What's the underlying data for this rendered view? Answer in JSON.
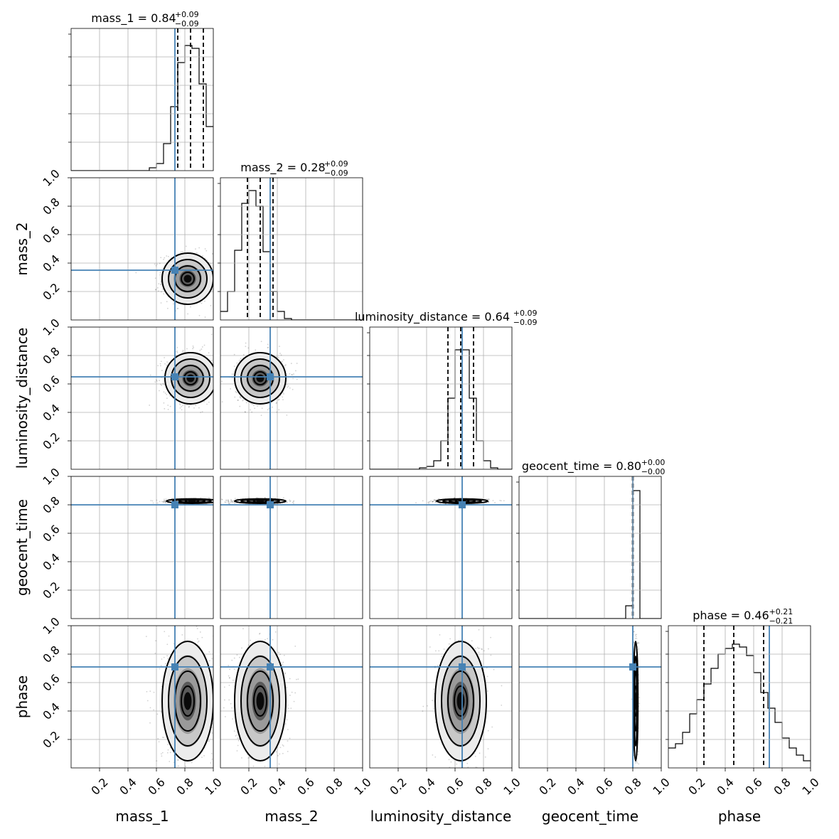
{
  "chart_data": {
    "type": "corner",
    "parameters": [
      "mass_1",
      "mass_2",
      "luminosity_distance",
      "geocent_time",
      "phase"
    ],
    "truths": {
      "mass_1": 0.73,
      "mass_2": 0.35,
      "luminosity_distance": 0.65,
      "geocent_time": 0.8,
      "phase": 0.71
    },
    "truth_color": "#4682b4",
    "summary": [
      {
        "param": "mass_1",
        "label": "mass_1 = 0.84",
        "median": 0.84,
        "plus": "+0.09",
        "minus": "−0.09",
        "q16": 0.75,
        "q84": 0.93
      },
      {
        "param": "mass_2",
        "label": "mass_2 = 0.28",
        "median": 0.28,
        "plus": "+0.09",
        "minus": "−0.09",
        "q16": 0.19,
        "q84": 0.37
      },
      {
        "param": "luminosity_distance",
        "label": "luminosity_distance = 0.64",
        "median": 0.64,
        "plus": "+0.09",
        "minus": "−0.09",
        "q16": 0.55,
        "q84": 0.73
      },
      {
        "param": "geocent_time",
        "label": "geocent_time = 0.80",
        "median": 0.8,
        "plus": "+0.00",
        "minus": "−0.00",
        "q16": 0.798,
        "q84": 0.802
      },
      {
        "param": "phase",
        "label": "phase = 0.46",
        "median": 0.46,
        "plus": "+0.21",
        "minus": "−0.21",
        "q16": 0.25,
        "q84": 0.67
      }
    ],
    "histograms": [
      {
        "param": "mass_1",
        "bin_edges": [
          0.0,
          0.05,
          0.1,
          0.15,
          0.2,
          0.25,
          0.3,
          0.35,
          0.4,
          0.45,
          0.5,
          0.55,
          0.6,
          0.65,
          0.7,
          0.75,
          0.8,
          0.85,
          0.9,
          0.95,
          1.0
        ],
        "counts": [
          0,
          0,
          0,
          0,
          0,
          0,
          0,
          0,
          0,
          0,
          0,
          0.02,
          0.05,
          0.19,
          0.45,
          0.76,
          0.88,
          0.86,
          0.61,
          0.31
        ]
      },
      {
        "param": "mass_2",
        "bin_edges": [
          0.0,
          0.05,
          0.1,
          0.15,
          0.2,
          0.25,
          0.3,
          0.35,
          0.4,
          0.45,
          0.5,
          0.55,
          0.6,
          0.65,
          0.7,
          0.75,
          0.8,
          0.85,
          0.9,
          0.95,
          1.0
        ],
        "counts": [
          0.06,
          0.2,
          0.49,
          0.82,
          0.91,
          0.8,
          0.48,
          0.2,
          0.06,
          0.01,
          0,
          0,
          0,
          0,
          0,
          0,
          0,
          0,
          0,
          0
        ]
      },
      {
        "param": "luminosity_distance",
        "bin_edges": [
          0.0,
          0.05,
          0.1,
          0.15,
          0.2,
          0.25,
          0.3,
          0.35,
          0.4,
          0.45,
          0.5,
          0.55,
          0.6,
          0.65,
          0.7,
          0.75,
          0.8,
          0.85,
          0.9,
          0.95,
          1.0
        ],
        "counts": [
          0,
          0,
          0,
          0,
          0,
          0,
          0,
          0.01,
          0.02,
          0.06,
          0.2,
          0.5,
          0.84,
          0.84,
          0.5,
          0.2,
          0.06,
          0.01,
          0,
          0
        ]
      },
      {
        "param": "geocent_time",
        "bin_edges": [
          0.0,
          0.05,
          0.1,
          0.15,
          0.2,
          0.25,
          0.3,
          0.35,
          0.4,
          0.45,
          0.5,
          0.55,
          0.6,
          0.65,
          0.7,
          0.75,
          0.8,
          0.85,
          0.9,
          0.95,
          1.0
        ],
        "counts": [
          0,
          0,
          0,
          0,
          0,
          0,
          0,
          0,
          0,
          0,
          0,
          0,
          0,
          0,
          0,
          0.09,
          0.9,
          0,
          0,
          0
        ]
      },
      {
        "param": "phase",
        "bin_edges": [
          0.0,
          0.05,
          0.1,
          0.15,
          0.2,
          0.25,
          0.3,
          0.35,
          0.4,
          0.45,
          0.5,
          0.55,
          0.6,
          0.65,
          0.7,
          0.75,
          0.8,
          0.85,
          0.9,
          0.95,
          1.0
        ],
        "counts": [
          0.14,
          0.17,
          0.25,
          0.38,
          0.48,
          0.59,
          0.7,
          0.8,
          0.84,
          0.87,
          0.85,
          0.79,
          0.67,
          0.53,
          0.42,
          0.32,
          0.21,
          0.14,
          0.09,
          0.05
        ]
      }
    ],
    "contours_2d": [
      {
        "x": "mass_1",
        "y": "mass_2",
        "cx": 0.82,
        "cy": 0.29,
        "sx": 0.09,
        "sy": 0.09
      },
      {
        "x": "mass_1",
        "y": "luminosity_distance",
        "cx": 0.84,
        "cy": 0.64,
        "sx": 0.09,
        "sy": 0.09
      },
      {
        "x": "mass_2",
        "y": "luminosity_distance",
        "cx": 0.28,
        "cy": 0.64,
        "sx": 0.09,
        "sy": 0.09
      },
      {
        "x": "mass_1",
        "y": "geocent_time",
        "cx": 0.85,
        "cy": 0.826,
        "sx": 0.09,
        "sy": 0.008
      },
      {
        "x": "mass_2",
        "y": "geocent_time",
        "cx": 0.28,
        "cy": 0.826,
        "sx": 0.09,
        "sy": 0.008
      },
      {
        "x": "luminosity_distance",
        "y": "geocent_time",
        "cx": 0.65,
        "cy": 0.826,
        "sx": 0.09,
        "sy": 0.008
      },
      {
        "x": "mass_1",
        "y": "phase",
        "cx": 0.82,
        "cy": 0.47,
        "sx": 0.09,
        "sy": 0.21
      },
      {
        "x": "mass_2",
        "y": "phase",
        "cx": 0.28,
        "cy": 0.47,
        "sx": 0.09,
        "sy": 0.21
      },
      {
        "x": "luminosity_distance",
        "y": "phase",
        "cx": 0.64,
        "cy": 0.47,
        "sx": 0.09,
        "sy": 0.21
      },
      {
        "x": "geocent_time",
        "y": "phase",
        "cx": 0.82,
        "cy": 0.47,
        "sx": 0.008,
        "sy": 0.21
      }
    ],
    "axis_range": [
      0,
      1
    ],
    "x_ticks": [
      0.2,
      0.4,
      0.6,
      0.8,
      1.0
    ],
    "y_ticks": [
      0.2,
      0.4,
      0.6,
      0.8,
      1.0
    ],
    "tick_labels": [
      "0.2",
      "0.4",
      "0.6",
      "0.8",
      "1.0"
    ],
    "grid": true
  }
}
